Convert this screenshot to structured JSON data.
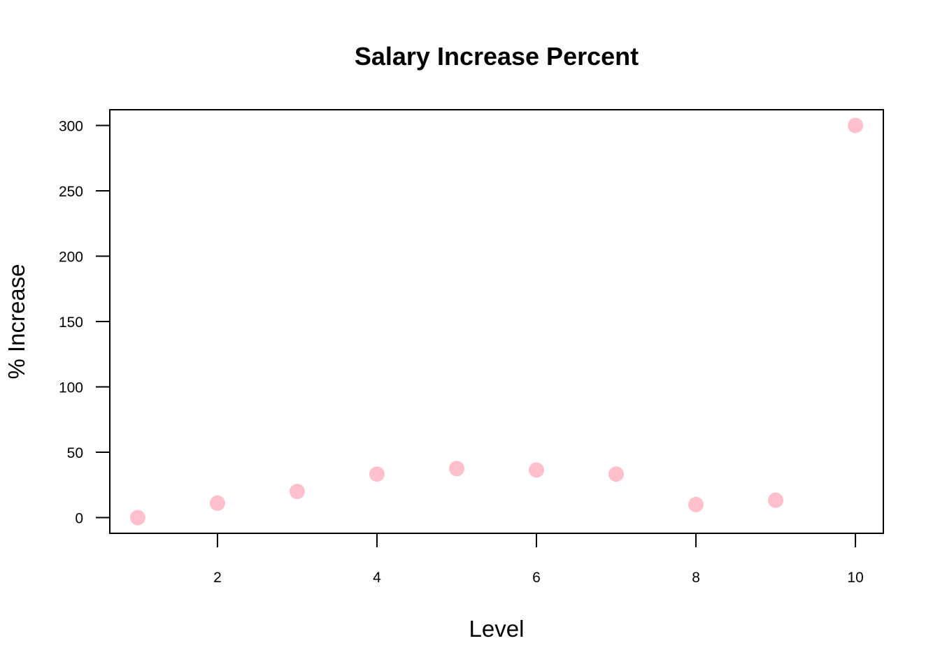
{
  "chart_data": {
    "type": "scatter",
    "title": "Salary Increase Percent",
    "xlabel": "Level",
    "ylabel": "% Increase",
    "x": [
      1,
      2,
      3,
      4,
      5,
      6,
      7,
      8,
      9,
      10
    ],
    "y": [
      0,
      11.1,
      20,
      33.3,
      37.5,
      36.4,
      33.3,
      10,
      13.3,
      300
    ],
    "xlim": [
      0.65,
      10.35
    ],
    "ylim": [
      -12,
      312
    ],
    "xticks": [
      2,
      4,
      6,
      8,
      10
    ],
    "yticks": [
      0,
      50,
      100,
      150,
      200,
      250,
      300
    ],
    "point_color": "#FFC0CB",
    "grid": false
  }
}
